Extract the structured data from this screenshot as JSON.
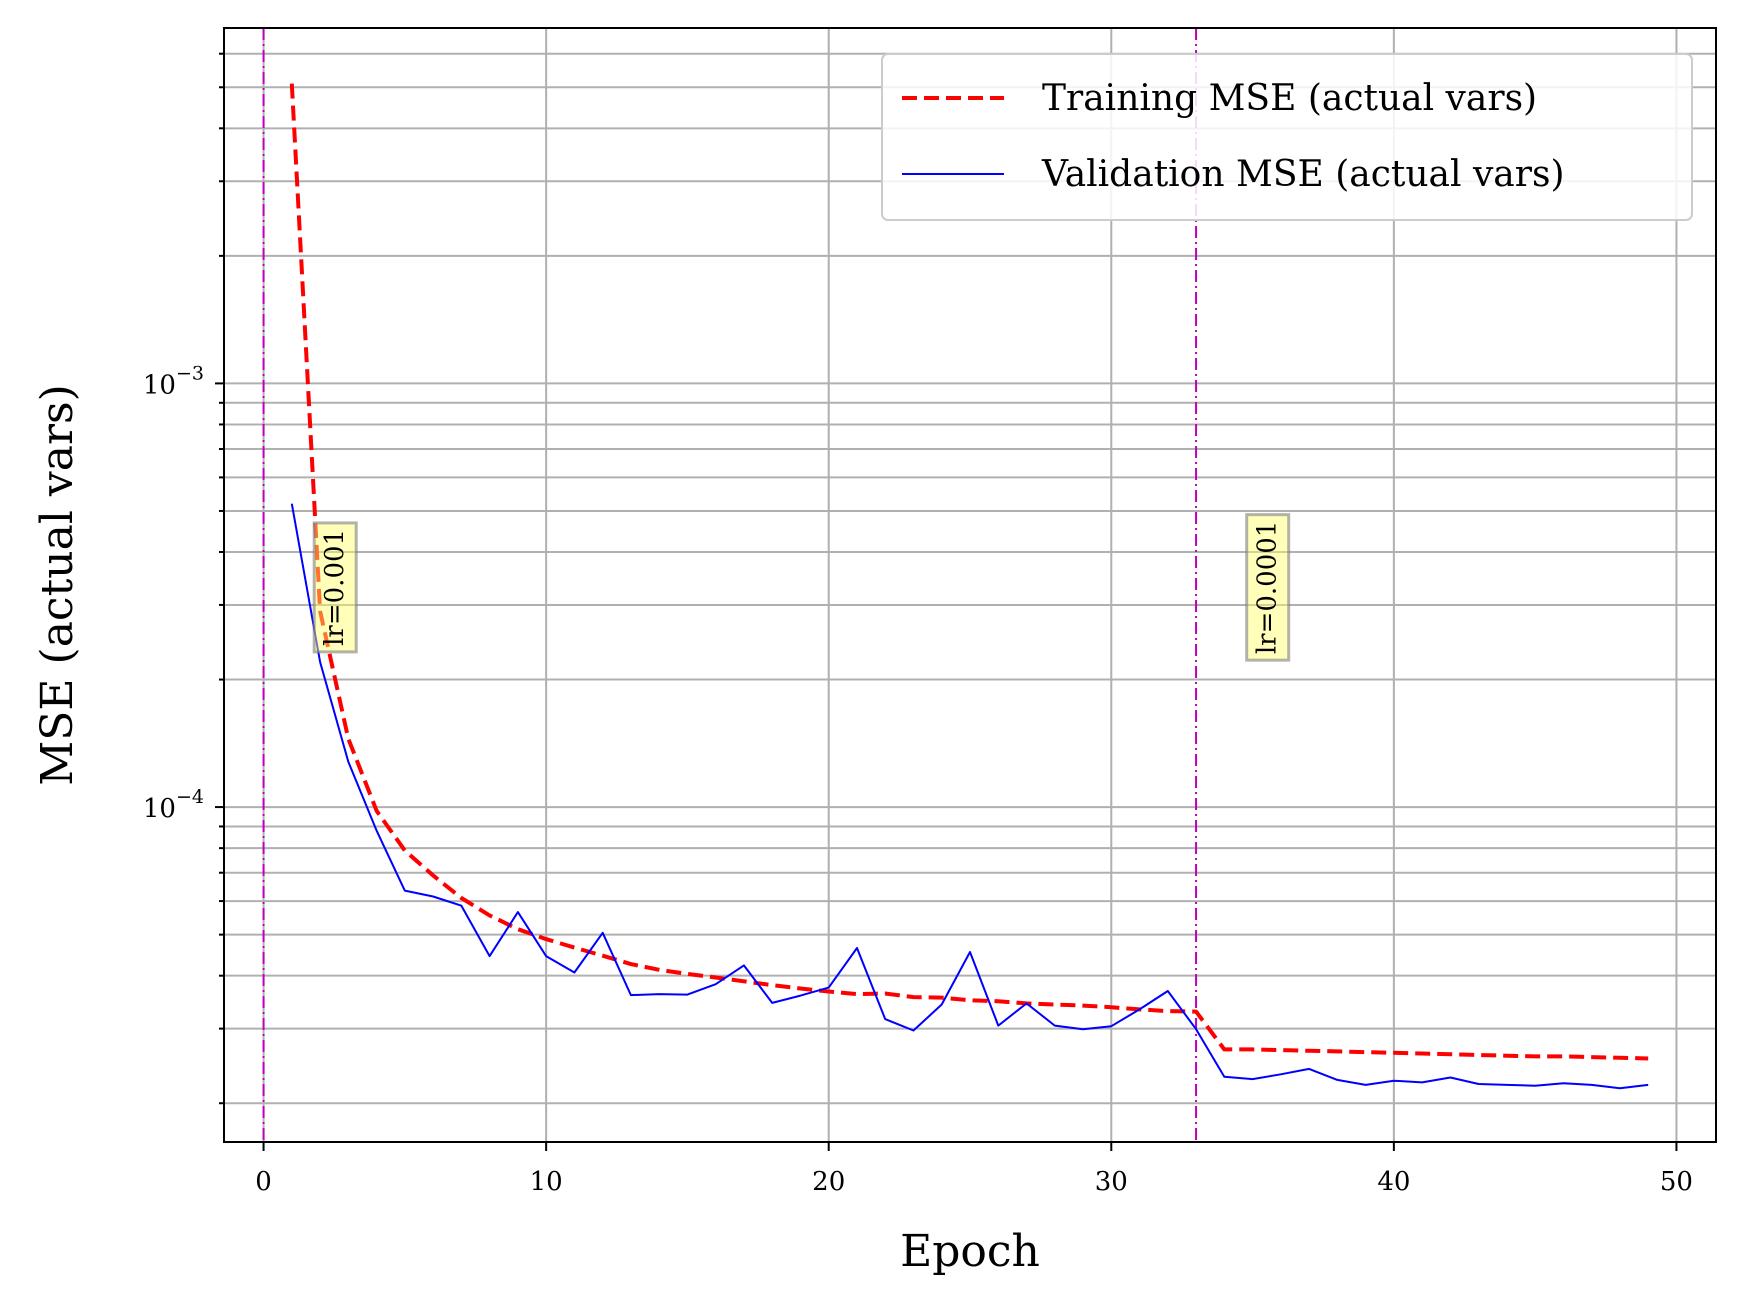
{
  "chart_data": {
    "type": "line",
    "title": "",
    "xlabel": "Epoch",
    "ylabel": "MSE (actual vars)",
    "xlim": [
      -1.4,
      51.4
    ],
    "ylim": [
      1.62e-05,
      0.0069
    ],
    "yscale": "log",
    "grid": true,
    "grid_minor_y": true,
    "legend_position": "top-right",
    "x_ticks": [
      0,
      10,
      20,
      30,
      40,
      50
    ],
    "x_tick_labels": [
      "0",
      "10",
      "20",
      "30",
      "40",
      "50"
    ],
    "y_ticks": [
      0.001,
      0.0001
    ],
    "y_tick_labels": [
      {
        "base": "10",
        "exp": "−3"
      },
      {
        "base": "10",
        "exp": "−4"
      }
    ],
    "series": [
      {
        "name": "Training MSE (actual vars)",
        "color": "#ff0000",
        "dash": "dashed",
        "x": [
          1,
          2,
          3,
          4,
          5,
          6,
          7,
          8,
          9,
          10,
          11,
          12,
          13,
          14,
          15,
          16,
          17,
          18,
          19,
          20,
          21,
          22,
          23,
          24,
          25,
          26,
          27,
          28,
          29,
          30,
          31,
          32,
          33,
          34,
          35,
          36,
          37,
          38,
          39,
          40,
          41,
          42,
          43,
          44,
          45,
          46,
          47,
          48,
          49
        ],
        "y": [
          0.0051,
          0.00029,
          0.000145,
          9.8e-05,
          7.9e-05,
          6.9e-05,
          6.1e-05,
          5.55e-05,
          5.15e-05,
          4.88e-05,
          4.66e-05,
          4.46e-05,
          4.26e-05,
          4.13e-05,
          4.04e-05,
          3.96e-05,
          3.88e-05,
          3.8e-05,
          3.73e-05,
          3.67e-05,
          3.62e-05,
          3.63e-05,
          3.56e-05,
          3.55e-05,
          3.5e-05,
          3.48e-05,
          3.44e-05,
          3.42e-05,
          3.4e-05,
          3.37e-05,
          3.33e-05,
          3.3e-05,
          3.29e-05,
          2.68e-05,
          2.68e-05,
          2.67e-05,
          2.66e-05,
          2.65e-05,
          2.64e-05,
          2.63e-05,
          2.62e-05,
          2.61e-05,
          2.6e-05,
          2.59e-05,
          2.58e-05,
          2.58e-05,
          2.57e-05,
          2.56e-05,
          2.55e-05
        ]
      },
      {
        "name": "Validation MSE (actual vars)",
        "color": "#0000ff",
        "dash": "solid",
        "x": [
          1,
          2,
          3,
          4,
          5,
          6,
          7,
          8,
          9,
          10,
          11,
          12,
          13,
          14,
          15,
          16,
          17,
          18,
          19,
          20,
          21,
          22,
          23,
          24,
          25,
          26,
          27,
          28,
          29,
          30,
          31,
          32,
          33,
          34,
          35,
          36,
          37,
          38,
          39,
          40,
          41,
          42,
          43,
          44,
          45,
          46,
          47,
          48,
          49
        ],
        "y": [
          0.00052,
          0.00022,
          0.000128,
          8.8e-05,
          6.35e-05,
          6.15e-05,
          5.85e-05,
          4.45e-05,
          5.65e-05,
          4.45e-05,
          4.07e-05,
          5.05e-05,
          3.6e-05,
          3.62e-05,
          3.61e-05,
          3.82e-05,
          4.23e-05,
          3.45e-05,
          3.59e-05,
          3.75e-05,
          4.65e-05,
          3.16e-05,
          2.97e-05,
          3.42e-05,
          4.55e-05,
          3.05e-05,
          3.44e-05,
          3.05e-05,
          2.99e-05,
          3.04e-05,
          3.33e-05,
          3.68e-05,
          2.99e-05,
          2.31e-05,
          2.28e-05,
          2.34e-05,
          2.41e-05,
          2.27e-05,
          2.21e-05,
          2.26e-05,
          2.24e-05,
          2.3e-05,
          2.22e-05,
          2.21e-05,
          2.2e-05,
          2.23e-05,
          2.21e-05,
          2.17e-05,
          2.21e-05
        ]
      }
    ],
    "vlines": [
      {
        "x": 0,
        "color": "#bf00bf"
      },
      {
        "x": 33,
        "color": "#bf00bf"
      }
    ],
    "annotations": [
      {
        "text": "lr=0.001",
        "x": 2.5,
        "y": 0.00033
      },
      {
        "text": "lr=0.0001",
        "x": 35.5,
        "y": 0.00033
      }
    ]
  }
}
